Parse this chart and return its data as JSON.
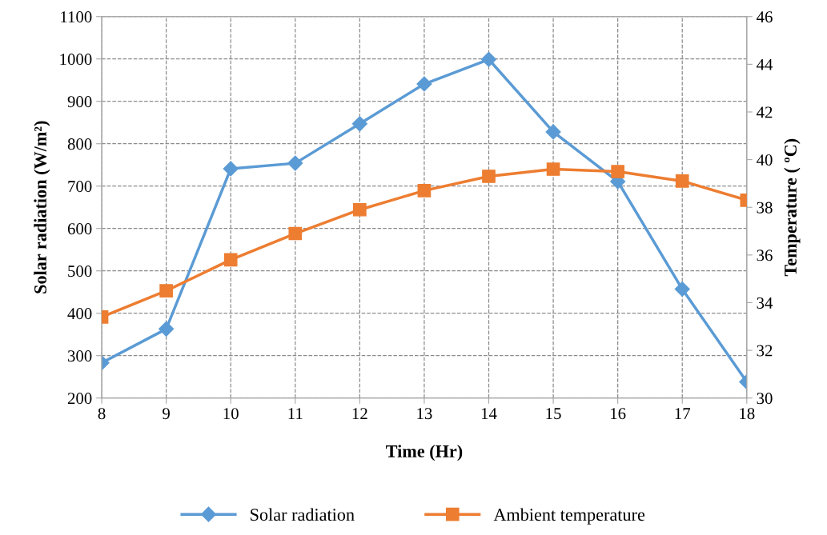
{
  "chart_data": {
    "type": "line",
    "xlabel": "Time (Hr)",
    "ylabel": "Solar radiation (W/m²)",
    "y2label": "Temperature ( ºC)",
    "x": [
      8,
      9,
      10,
      11,
      12,
      13,
      14,
      15,
      16,
      17,
      18
    ],
    "xlim": [
      8,
      18
    ],
    "xticks": [
      8,
      9,
      10,
      11,
      12,
      13,
      14,
      15,
      16,
      17,
      18
    ],
    "ylim": [
      200,
      1100
    ],
    "yticks": [
      200,
      300,
      400,
      500,
      600,
      700,
      800,
      900,
      1000,
      1100
    ],
    "y2lim": [
      30,
      46
    ],
    "y2ticks": [
      30,
      32,
      34,
      36,
      38,
      40,
      42,
      44,
      46
    ],
    "grid": true,
    "legend": "bottom",
    "line_style": "solid",
    "series": [
      {
        "name": "Solar radiation",
        "color": "#5b9bd5",
        "marker": "diamond",
        "values": [
          283,
          363,
          741,
          754,
          847,
          941,
          999,
          828,
          711,
          457,
          238
        ]
      },
      {
        "name": "Ambient temperature",
        "color": "#ed7d31",
        "marker": "square",
        "axis": "y2",
        "values": [
          33.4,
          34.5,
          35.8,
          36.9,
          37.9,
          38.7,
          39.3,
          39.6,
          39.5,
          39.1,
          38.3
        ]
      }
    ]
  }
}
